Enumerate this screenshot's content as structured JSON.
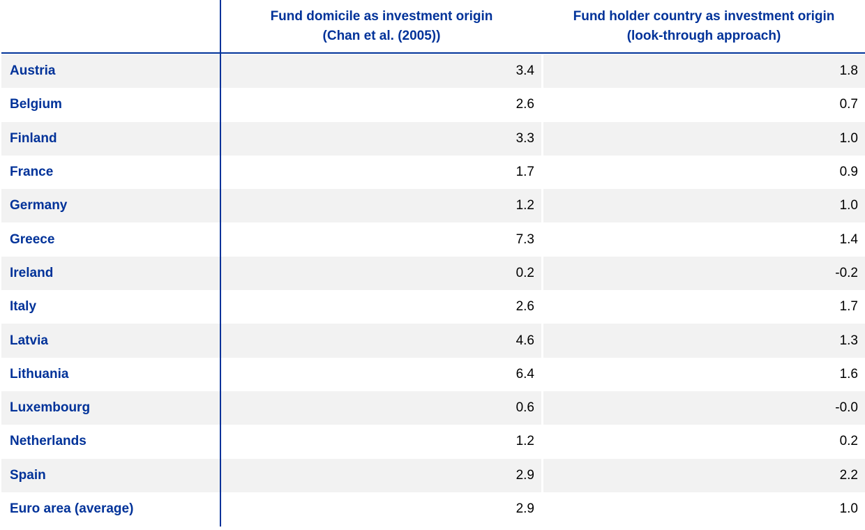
{
  "table": {
    "header": [
      "Fund domicile as investment origin\n(Chan et al. (2005))",
      "Fund holder country as investment origin\n(look-through approach)"
    ],
    "rows": [
      [
        "Austria",
        "3.4",
        "1.8"
      ],
      [
        "Belgium",
        "2.6",
        "0.7"
      ],
      [
        "Finland",
        "3.3",
        "1.0"
      ],
      [
        "France",
        "1.7",
        "0.9"
      ],
      [
        "Germany",
        "1.2",
        "1.0"
      ],
      [
        "Greece",
        "7.3",
        "1.4"
      ],
      [
        "Ireland",
        "0.2",
        "-0.2"
      ],
      [
        "Italy",
        "2.6",
        "1.7"
      ],
      [
        "Latvia",
        "4.6",
        "1.3"
      ],
      [
        "Lithuania",
        "6.4",
        "1.6"
      ],
      [
        "Luxembourg",
        "0.6",
        "-0.0"
      ],
      [
        "Netherlands",
        "1.2",
        "0.2"
      ],
      [
        "Spain",
        "2.9",
        "2.2"
      ],
      [
        "Euro area (average)",
        "2.9",
        "1.0"
      ]
    ]
  }
}
